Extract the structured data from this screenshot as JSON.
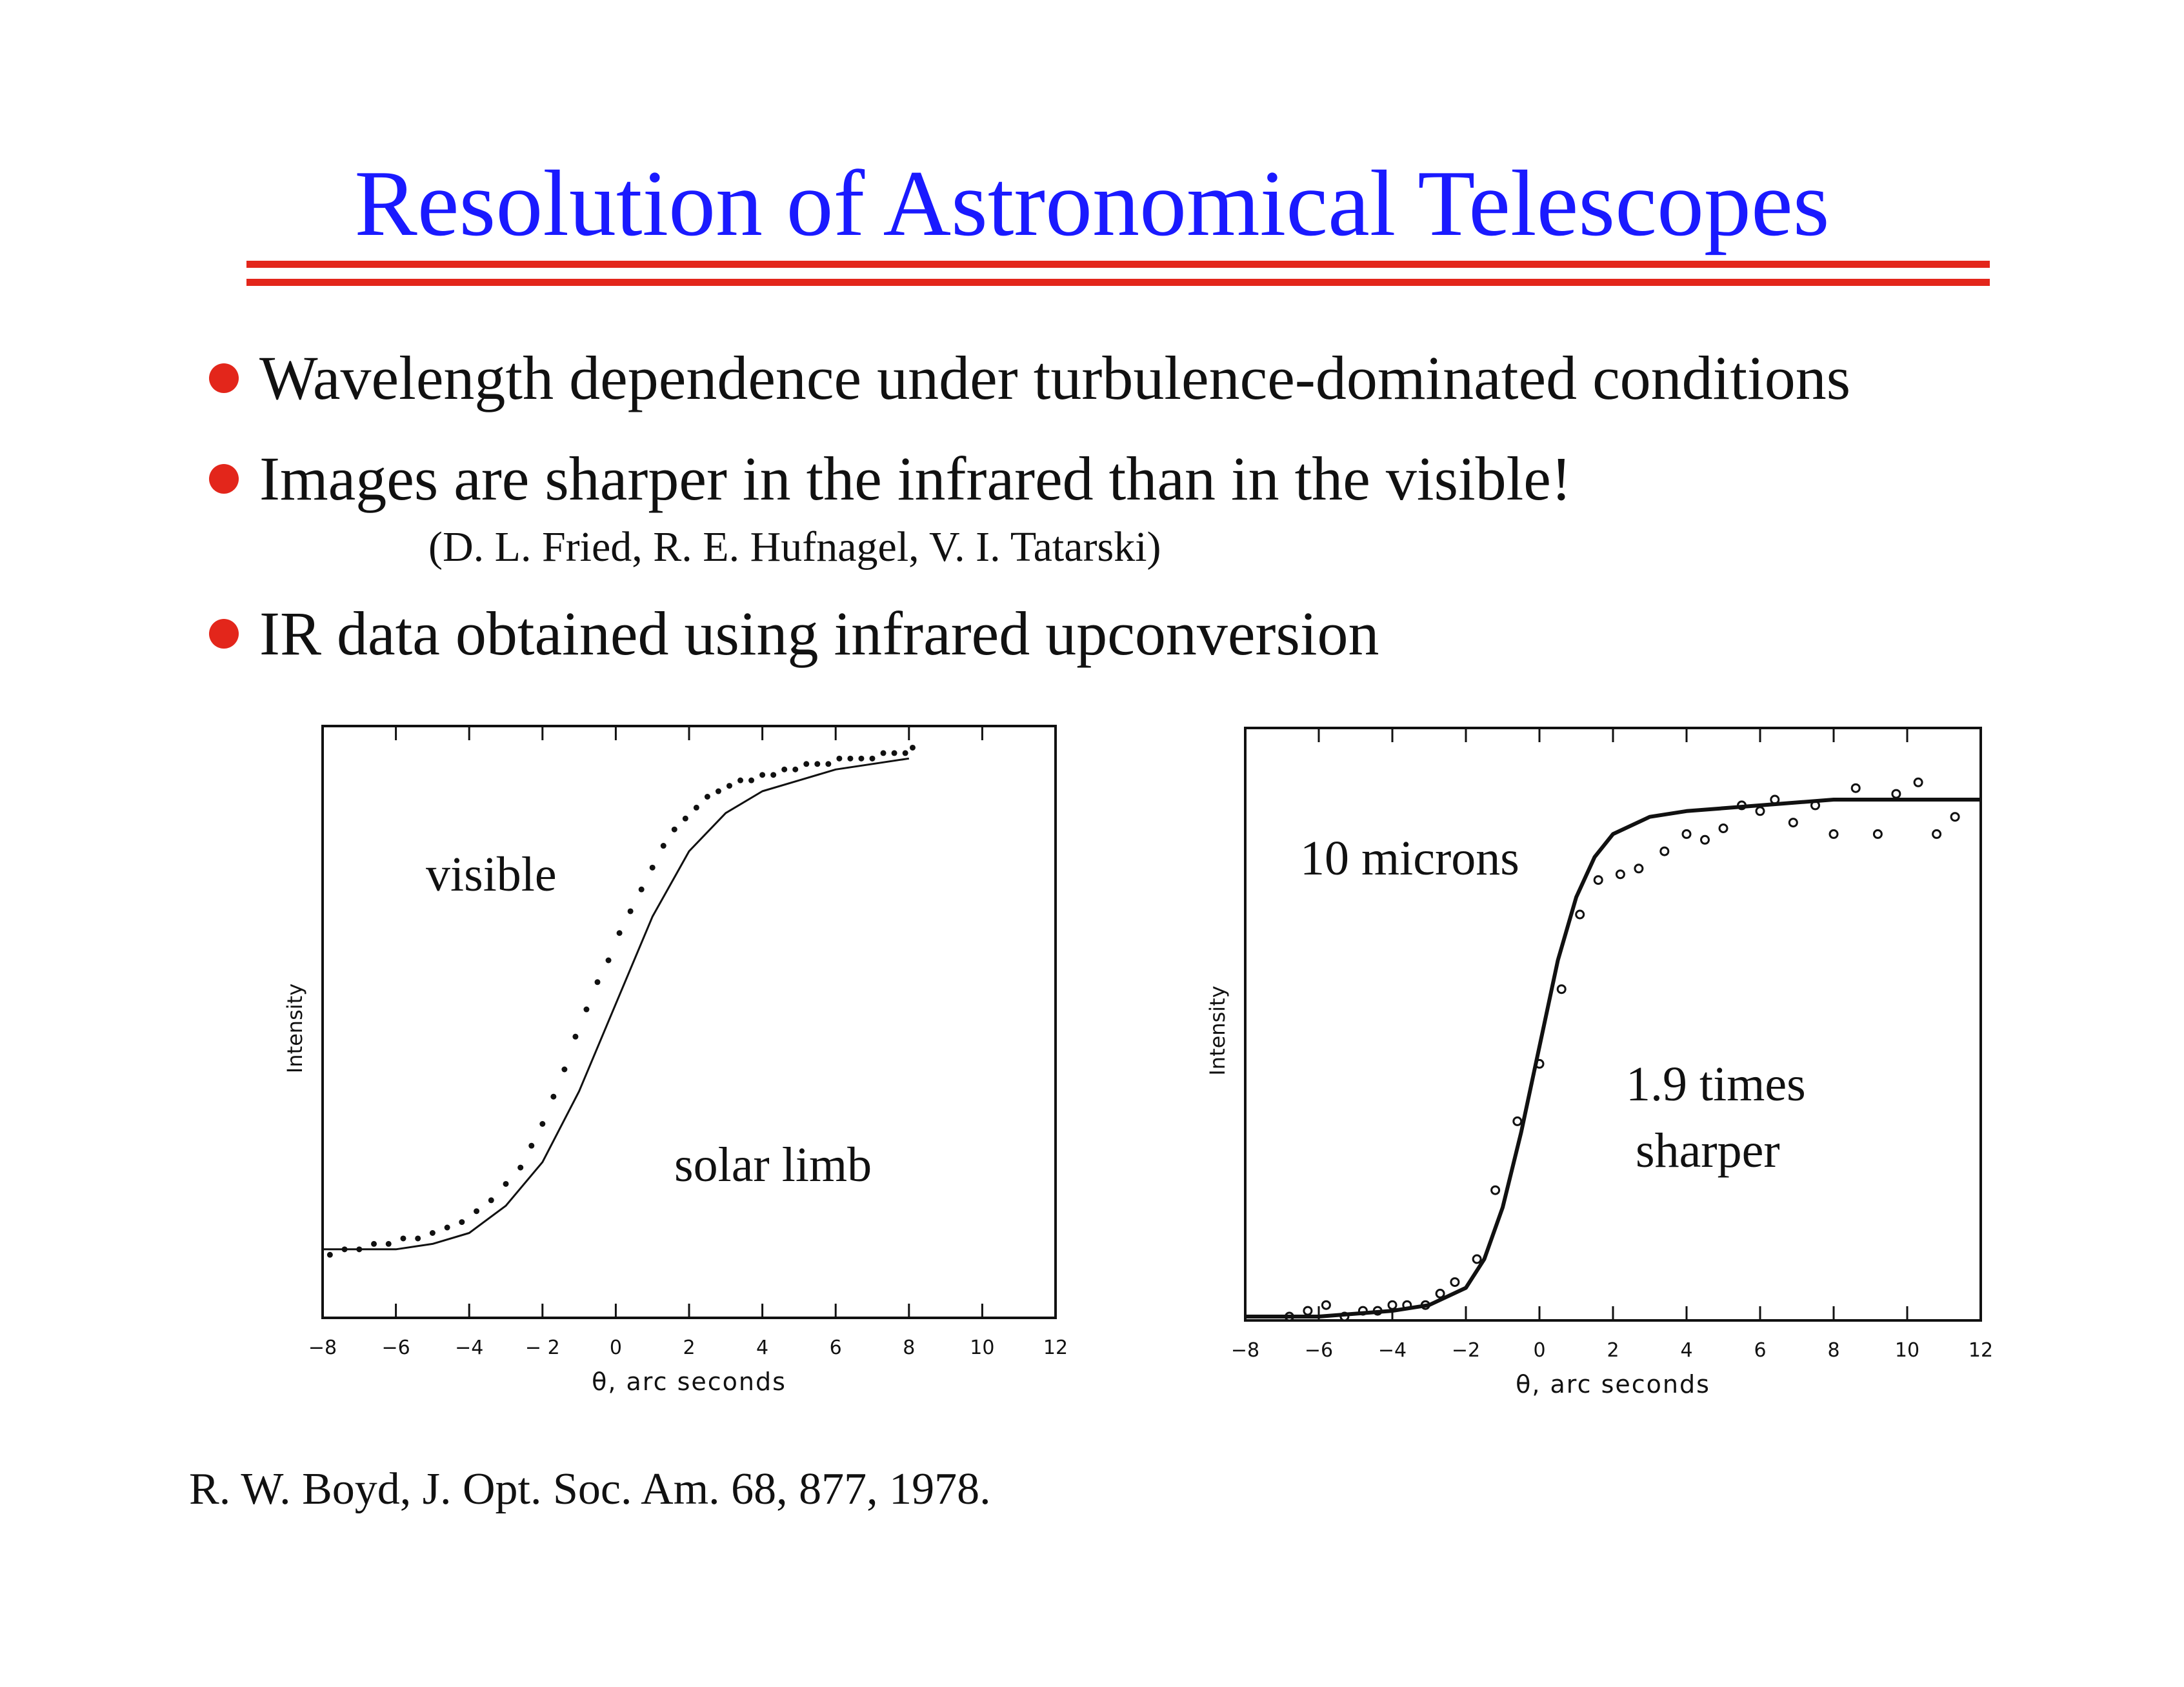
{
  "slide": {
    "title": "Resolution of Astronomical Telescopes",
    "bullets": [
      "Wavelength dependence under turbulence-dominated conditions",
      "Images are sharper in the infrared than in the visible!",
      "IR data obtained using infrared upconversion"
    ],
    "attribution": "(D. L. Fried,  R. E. Hufnagel, V. I. Tatarski)",
    "reference": "R. W. Boyd, J. Opt. Soc. Am. 68, 877, 1978.",
    "colors": {
      "title": "#1a1aff",
      "accent": "#e3261b",
      "text": "#111111"
    }
  },
  "chart_data": [
    {
      "type": "scatter",
      "xlabel": "θ, arc seconds",
      "ylabel": "Intensity",
      "xlim": [
        -8,
        12
      ],
      "ylim": [
        0,
        1
      ],
      "xticks": [
        -8,
        -6,
        -4,
        -2,
        0,
        2,
        4,
        6,
        8,
        10,
        12
      ],
      "xtick_labels": [
        "−8",
        "−6",
        "−4",
        "− 2",
        "0",
        "2",
        "4",
        "6",
        "8",
        "10",
        "12"
      ],
      "grid": false,
      "annotations": [
        "visible",
        "solar limb"
      ],
      "series": [
        {
          "kind": "points",
          "x": [
            -7.8,
            -7.4,
            -7.0,
            -6.6,
            -6.2,
            -5.8,
            -5.4,
            -5.0,
            -4.6,
            -4.2,
            -3.8,
            -3.4,
            -3.0,
            -2.6,
            -2.3,
            -2.0,
            -1.7,
            -1.4,
            -1.1,
            -0.8,
            -0.5,
            -0.2,
            0.1,
            0.4,
            0.7,
            1.0,
            1.3,
            1.6,
            1.9,
            2.2,
            2.5,
            2.8,
            3.1,
            3.4,
            3.7,
            4.0,
            4.3,
            4.6,
            4.9,
            5.2,
            5.5,
            5.8,
            6.1,
            6.4,
            6.7,
            7.0,
            7.3,
            7.6,
            7.9,
            8.1
          ],
          "y": [
            0.06,
            0.07,
            0.07,
            0.08,
            0.08,
            0.09,
            0.09,
            0.1,
            0.11,
            0.12,
            0.14,
            0.16,
            0.19,
            0.22,
            0.26,
            0.3,
            0.35,
            0.4,
            0.46,
            0.51,
            0.56,
            0.6,
            0.65,
            0.69,
            0.73,
            0.77,
            0.81,
            0.84,
            0.86,
            0.88,
            0.9,
            0.91,
            0.92,
            0.93,
            0.93,
            0.94,
            0.94,
            0.95,
            0.95,
            0.96,
            0.96,
            0.96,
            0.97,
            0.97,
            0.97,
            0.97,
            0.98,
            0.98,
            0.98,
            0.99
          ]
        },
        {
          "kind": "fit",
          "x": [
            -8,
            -6,
            -5,
            -4,
            -3,
            -2,
            -1,
            0,
            1,
            2,
            3,
            4,
            5,
            6,
            7,
            8
          ],
          "y": [
            0.07,
            0.07,
            0.08,
            0.1,
            0.15,
            0.23,
            0.36,
            0.52,
            0.68,
            0.8,
            0.87,
            0.91,
            0.93,
            0.95,
            0.96,
            0.97
          ]
        }
      ]
    },
    {
      "type": "scatter",
      "xlabel": "θ, arc seconds",
      "ylabel": "Intensity",
      "xlim": [
        -8,
        12
      ],
      "ylim": [
        0,
        1
      ],
      "xticks": [
        -8,
        -6,
        -4,
        -2,
        0,
        2,
        4,
        6,
        8,
        10,
        12
      ],
      "xtick_labels": [
        "−8",
        "−6",
        "−4",
        "−2",
        "0",
        "2",
        "4",
        "6",
        "8",
        "10",
        "12"
      ],
      "grid": false,
      "annotations": [
        "10 microns",
        "1.9 times",
        "sharper"
      ],
      "series": [
        {
          "kind": "points",
          "x": [
            -6.8,
            -6.3,
            -5.8,
            -5.3,
            -4.8,
            -4.4,
            -4.0,
            -3.6,
            -3.1,
            -2.7,
            -2.3,
            -1.7,
            -1.2,
            -0.6,
            0.0,
            0.6,
            1.1,
            1.6,
            2.2,
            2.7,
            3.4,
            4.0,
            4.5,
            5.0,
            5.5,
            6.0,
            6.4,
            6.9,
            7.5,
            8.0,
            8.6,
            9.2,
            9.7,
            10.3,
            10.8,
            11.3
          ],
          "y": [
            0.0,
            0.01,
            0.02,
            0.0,
            0.01,
            0.01,
            0.02,
            0.02,
            0.02,
            0.04,
            0.06,
            0.1,
            0.22,
            0.34,
            0.44,
            0.57,
            0.7,
            0.76,
            0.77,
            0.78,
            0.81,
            0.84,
            0.83,
            0.85,
            0.89,
            0.88,
            0.9,
            0.86,
            0.89,
            0.84,
            0.92,
            0.84,
            0.91,
            0.93,
            0.84,
            0.87
          ]
        },
        {
          "kind": "fit",
          "x": [
            -8,
            -6,
            -4,
            -3,
            -2,
            -1.5,
            -1,
            -0.5,
            0,
            0.5,
            1,
            1.5,
            2,
            3,
            4,
            6,
            8,
            12
          ],
          "y": [
            0.0,
            0.0,
            0.01,
            0.02,
            0.05,
            0.1,
            0.19,
            0.32,
            0.47,
            0.62,
            0.73,
            0.8,
            0.84,
            0.87,
            0.88,
            0.89,
            0.9,
            0.9
          ]
        }
      ]
    }
  ]
}
